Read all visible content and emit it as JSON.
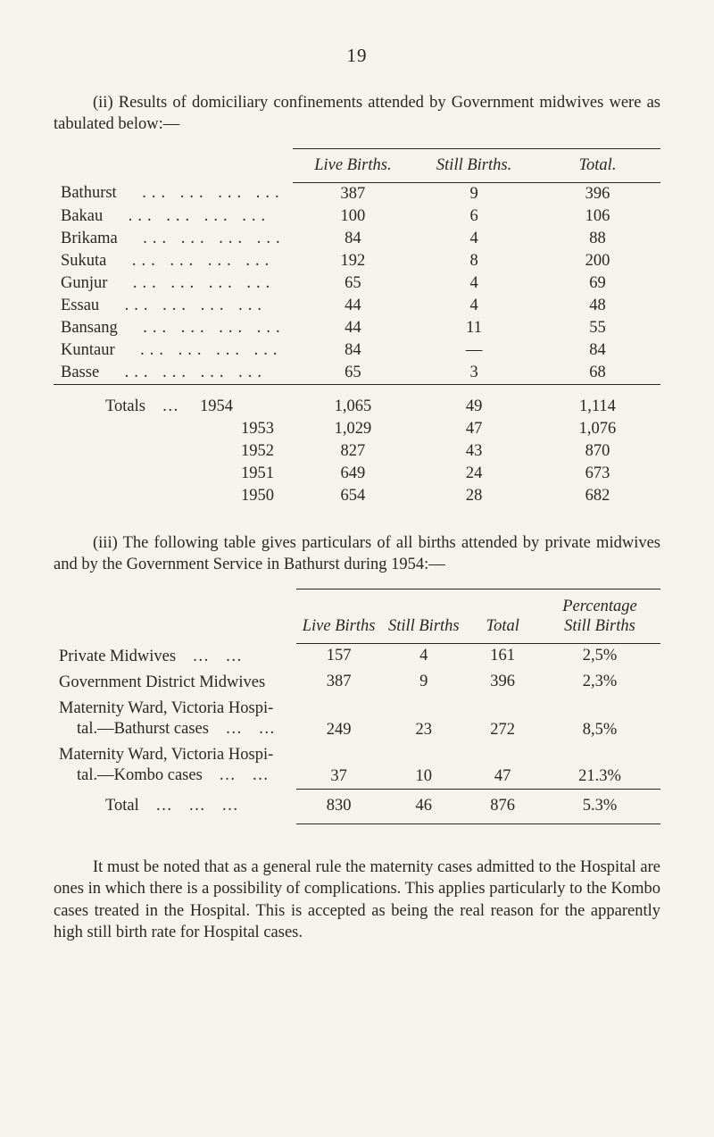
{
  "page_number": "19",
  "intro_para_ii": "(ii) Results of domiciliary confinements attended by Government midwives were as tabulated below:—",
  "table1": {
    "headers": {
      "live": "Live Births.",
      "still": "Still Births.",
      "total": "Total."
    },
    "rows": [
      {
        "label": "Bathurst",
        "live": "387",
        "still": "9",
        "total": "396",
        "dots": "... ... ... ..."
      },
      {
        "label": "Bakau",
        "live": "100",
        "still": "6",
        "total": "106",
        "dots": "... ... ... ..."
      },
      {
        "label": "Brikama",
        "live": "84",
        "still": "4",
        "total": "88",
        "dots": "... ... ... ..."
      },
      {
        "label": "Sukuta",
        "live": "192",
        "still": "8",
        "total": "200",
        "dots": "... ... ... ..."
      },
      {
        "label": "Gunjur",
        "live": "65",
        "still": "4",
        "total": "69",
        "dots": "... ... ... ..."
      },
      {
        "label": "Essau",
        "live": "44",
        "still": "4",
        "total": "48",
        "dots": "... ... ... ..."
      },
      {
        "label": "Bansang",
        "live": "44",
        "still": "11",
        "total": "55",
        "dots": "... ... ... ..."
      },
      {
        "label": "Kuntaur",
        "live": "84",
        "still": "—",
        "total": "84",
        "dots": "... ... ... ..."
      },
      {
        "label": "Basse",
        "live": "65",
        "still": "3",
        "total": "68",
        "dots": "... ... ... ..."
      }
    ],
    "totals_label_full": "Totals …",
    "totals": [
      {
        "year": "1954",
        "live": "1,065",
        "still": "49",
        "total": "1,114"
      },
      {
        "year": "1953",
        "live": "1,029",
        "still": "47",
        "total": "1,076"
      },
      {
        "year": "1952",
        "live": "827",
        "still": "43",
        "total": "870"
      },
      {
        "year": "1951",
        "live": "649",
        "still": "24",
        "total": "673"
      },
      {
        "year": "1950",
        "live": "654",
        "still": "28",
        "total": "682"
      }
    ]
  },
  "intro_para_iii": "(iii) The following table gives particulars of all births attended by private midwives and by the Government Service in Bathurst during 1954:—",
  "table2": {
    "headers": {
      "live": "Live Births",
      "still": "Still Births",
      "total": "Total",
      "pct": "Percentage\nStill Births"
    },
    "rows": [
      {
        "label_a": "Private Midwives … …",
        "label_b": "",
        "live": "157",
        "still": "4",
        "total": "161",
        "pct": "2,5%"
      },
      {
        "label_a": "Government District Midwives",
        "label_b": "",
        "live": "387",
        "still": "9",
        "total": "396",
        "pct": "2,3%"
      },
      {
        "label_a": "Maternity Ward, Victoria Hospi-",
        "label_b": "tal.—Bathurst cases … …",
        "live": "249",
        "still": "23",
        "total": "272",
        "pct": "8,5%"
      },
      {
        "label_a": "Maternity Ward, Victoria Hospi-",
        "label_b": "tal.—Kombo cases … …",
        "live": "37",
        "still": "10",
        "total": "47",
        "pct": "21.3%"
      }
    ],
    "total_row": {
      "label": "Total … … …",
      "live": "830",
      "still": "46",
      "total": "876",
      "pct": "5.3%"
    }
  },
  "final_para": "It must be noted that as a general rule the maternity cases admitted to the Hospital are ones in which there is a possibility of complications. This applies parti­cularly to the Kombo cases treated in the Hospital. This is accepted as being the real reason for the apparently high still birth rate for Hospital cases."
}
